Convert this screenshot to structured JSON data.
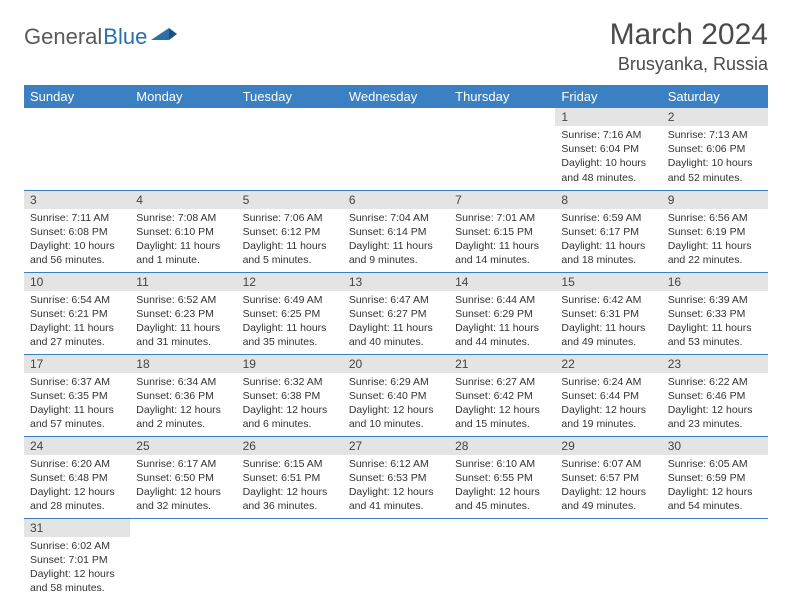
{
  "brand": {
    "general": "General",
    "blue": "Blue"
  },
  "title": "March 2024",
  "location": "Brusyanka, Russia",
  "colors": {
    "header_bg": "#3a80c3",
    "header_text": "#ffffff",
    "daynum_bg": "#e4e4e4",
    "border": "#3a80c3",
    "body_text": "#333333",
    "logo_gray": "#5a5a5a",
    "logo_blue": "#2b6fab"
  },
  "dow": [
    "Sunday",
    "Monday",
    "Tuesday",
    "Wednesday",
    "Thursday",
    "Friday",
    "Saturday"
  ],
  "weeks": [
    [
      null,
      null,
      null,
      null,
      null,
      {
        "n": "1",
        "sr": "Sunrise: 7:16 AM",
        "ss": "Sunset: 6:04 PM",
        "dl": "Daylight: 10 hours and 48 minutes."
      },
      {
        "n": "2",
        "sr": "Sunrise: 7:13 AM",
        "ss": "Sunset: 6:06 PM",
        "dl": "Daylight: 10 hours and 52 minutes."
      }
    ],
    [
      {
        "n": "3",
        "sr": "Sunrise: 7:11 AM",
        "ss": "Sunset: 6:08 PM",
        "dl": "Daylight: 10 hours and 56 minutes."
      },
      {
        "n": "4",
        "sr": "Sunrise: 7:08 AM",
        "ss": "Sunset: 6:10 PM",
        "dl": "Daylight: 11 hours and 1 minute."
      },
      {
        "n": "5",
        "sr": "Sunrise: 7:06 AM",
        "ss": "Sunset: 6:12 PM",
        "dl": "Daylight: 11 hours and 5 minutes."
      },
      {
        "n": "6",
        "sr": "Sunrise: 7:04 AM",
        "ss": "Sunset: 6:14 PM",
        "dl": "Daylight: 11 hours and 9 minutes."
      },
      {
        "n": "7",
        "sr": "Sunrise: 7:01 AM",
        "ss": "Sunset: 6:15 PM",
        "dl": "Daylight: 11 hours and 14 minutes."
      },
      {
        "n": "8",
        "sr": "Sunrise: 6:59 AM",
        "ss": "Sunset: 6:17 PM",
        "dl": "Daylight: 11 hours and 18 minutes."
      },
      {
        "n": "9",
        "sr": "Sunrise: 6:56 AM",
        "ss": "Sunset: 6:19 PM",
        "dl": "Daylight: 11 hours and 22 minutes."
      }
    ],
    [
      {
        "n": "10",
        "sr": "Sunrise: 6:54 AM",
        "ss": "Sunset: 6:21 PM",
        "dl": "Daylight: 11 hours and 27 minutes."
      },
      {
        "n": "11",
        "sr": "Sunrise: 6:52 AM",
        "ss": "Sunset: 6:23 PM",
        "dl": "Daylight: 11 hours and 31 minutes."
      },
      {
        "n": "12",
        "sr": "Sunrise: 6:49 AM",
        "ss": "Sunset: 6:25 PM",
        "dl": "Daylight: 11 hours and 35 minutes."
      },
      {
        "n": "13",
        "sr": "Sunrise: 6:47 AM",
        "ss": "Sunset: 6:27 PM",
        "dl": "Daylight: 11 hours and 40 minutes."
      },
      {
        "n": "14",
        "sr": "Sunrise: 6:44 AM",
        "ss": "Sunset: 6:29 PM",
        "dl": "Daylight: 11 hours and 44 minutes."
      },
      {
        "n": "15",
        "sr": "Sunrise: 6:42 AM",
        "ss": "Sunset: 6:31 PM",
        "dl": "Daylight: 11 hours and 49 minutes."
      },
      {
        "n": "16",
        "sr": "Sunrise: 6:39 AM",
        "ss": "Sunset: 6:33 PM",
        "dl": "Daylight: 11 hours and 53 minutes."
      }
    ],
    [
      {
        "n": "17",
        "sr": "Sunrise: 6:37 AM",
        "ss": "Sunset: 6:35 PM",
        "dl": "Daylight: 11 hours and 57 minutes."
      },
      {
        "n": "18",
        "sr": "Sunrise: 6:34 AM",
        "ss": "Sunset: 6:36 PM",
        "dl": "Daylight: 12 hours and 2 minutes."
      },
      {
        "n": "19",
        "sr": "Sunrise: 6:32 AM",
        "ss": "Sunset: 6:38 PM",
        "dl": "Daylight: 12 hours and 6 minutes."
      },
      {
        "n": "20",
        "sr": "Sunrise: 6:29 AM",
        "ss": "Sunset: 6:40 PM",
        "dl": "Daylight: 12 hours and 10 minutes."
      },
      {
        "n": "21",
        "sr": "Sunrise: 6:27 AM",
        "ss": "Sunset: 6:42 PM",
        "dl": "Daylight: 12 hours and 15 minutes."
      },
      {
        "n": "22",
        "sr": "Sunrise: 6:24 AM",
        "ss": "Sunset: 6:44 PM",
        "dl": "Daylight: 12 hours and 19 minutes."
      },
      {
        "n": "23",
        "sr": "Sunrise: 6:22 AM",
        "ss": "Sunset: 6:46 PM",
        "dl": "Daylight: 12 hours and 23 minutes."
      }
    ],
    [
      {
        "n": "24",
        "sr": "Sunrise: 6:20 AM",
        "ss": "Sunset: 6:48 PM",
        "dl": "Daylight: 12 hours and 28 minutes."
      },
      {
        "n": "25",
        "sr": "Sunrise: 6:17 AM",
        "ss": "Sunset: 6:50 PM",
        "dl": "Daylight: 12 hours and 32 minutes."
      },
      {
        "n": "26",
        "sr": "Sunrise: 6:15 AM",
        "ss": "Sunset: 6:51 PM",
        "dl": "Daylight: 12 hours and 36 minutes."
      },
      {
        "n": "27",
        "sr": "Sunrise: 6:12 AM",
        "ss": "Sunset: 6:53 PM",
        "dl": "Daylight: 12 hours and 41 minutes."
      },
      {
        "n": "28",
        "sr": "Sunrise: 6:10 AM",
        "ss": "Sunset: 6:55 PM",
        "dl": "Daylight: 12 hours and 45 minutes."
      },
      {
        "n": "29",
        "sr": "Sunrise: 6:07 AM",
        "ss": "Sunset: 6:57 PM",
        "dl": "Daylight: 12 hours and 49 minutes."
      },
      {
        "n": "30",
        "sr": "Sunrise: 6:05 AM",
        "ss": "Sunset: 6:59 PM",
        "dl": "Daylight: 12 hours and 54 minutes."
      }
    ],
    [
      {
        "n": "31",
        "sr": "Sunrise: 6:02 AM",
        "ss": "Sunset: 7:01 PM",
        "dl": "Daylight: 12 hours and 58 minutes."
      },
      null,
      null,
      null,
      null,
      null,
      null
    ]
  ]
}
